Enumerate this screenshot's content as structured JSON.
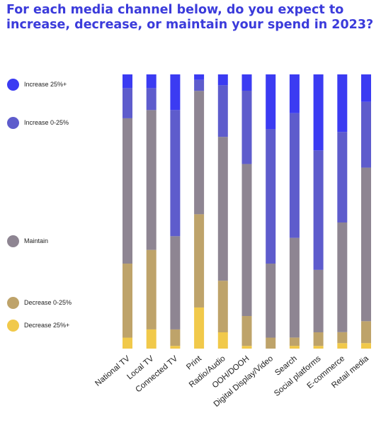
{
  "title": "For each media channel below, do you expect to increase, decrease, or maintain your spend in 2023?",
  "colors": {
    "title": "#3b3bdb",
    "Increase 25%+": "#3b3bf2",
    "Increase 0-25%": "#5e5ccc",
    "Maintain": "#8e8592",
    "Decrease 0-25%": "#bea36a",
    "Decrease 25%+": "#f1c94a"
  },
  "chart_data": {
    "type": "bar",
    "stacked": true,
    "normalized": true,
    "ylim": [
      0,
      100
    ],
    "grid": false,
    "legend_placement": "left",
    "categories": [
      "National TV",
      "Local TV",
      "Connected TV",
      "Print",
      "Radio/Audio",
      "OOH/DOOH",
      "Digital Display/Video",
      "Search",
      "Social platforms",
      "E-commerce",
      "Retail media"
    ],
    "series": [
      {
        "name": "Decrease 25%+",
        "values": [
          4,
          7,
          1,
          15,
          6,
          1,
          0,
          1,
          1,
          2,
          2
        ]
      },
      {
        "name": "Decrease 0-25%",
        "values": [
          27,
          29,
          6,
          34,
          19,
          11,
          4,
          3,
          5,
          4,
          8
        ]
      },
      {
        "name": "Maintain",
        "values": [
          53,
          51,
          34,
          45,
          53,
          56,
          27,
          36,
          23,
          40,
          56
        ]
      },
      {
        "name": "Increase 0-25%",
        "values": [
          11,
          8,
          46,
          4,
          19,
          27,
          49,
          45,
          44,
          33,
          24
        ]
      },
      {
        "name": "Increase 25%+",
        "values": [
          5,
          5,
          13,
          2,
          4,
          6,
          20,
          14,
          28,
          21,
          10
        ]
      }
    ]
  }
}
